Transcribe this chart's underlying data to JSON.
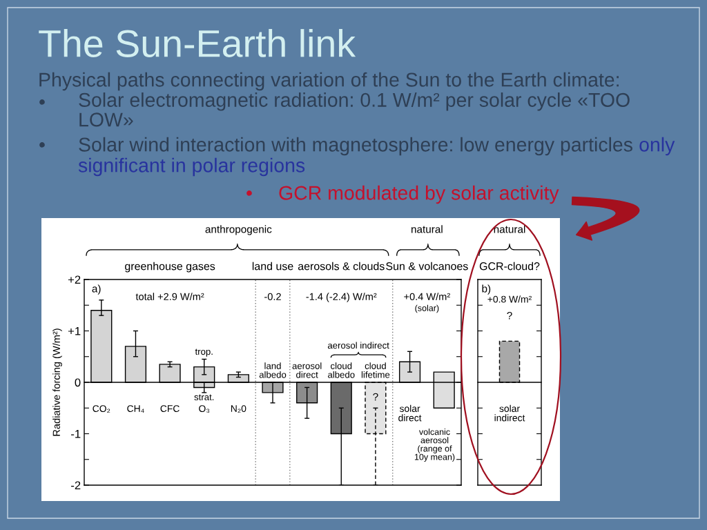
{
  "chart_data": [
    {
      "type": "bar",
      "title": "The Sun-Earth link",
      "ylabel": "Radiative forcing (W/m²)",
      "categories": [
        "CO₂",
        "CH₄",
        "CFC",
        "O₃",
        "N₂0",
        "land\nalbedo",
        "aerosol\ndirect",
        "cloud\nalbedo",
        "cloud\nlifetime",
        "solar\ndirect",
        "volcanic\naerosol\n(range of\n10y mean)"
      ],
      "series": [
        {
          "colors": [
            "#d4d4d4",
            "#d4d4d4",
            "#d4d4d4",
            "#d4d4d4",
            "#d4d4d4",
            "#a6a6a6",
            "#8c8c8c",
            "#6a6a6a",
            "#e4e4e4",
            "#d9d9d9",
            "#dedede"
          ],
          "values": [
            1.4,
            0.7,
            0.35,
            0.3,
            0.15,
            -0.2,
            -0.4,
            -1.0,
            null,
            0.4,
            0.7
          ],
          "base": [
            null,
            null,
            null,
            null,
            null,
            null,
            null,
            null,
            null,
            null,
            -0.5
          ],
          "errors": [
            [
              1.3,
              1.6
            ],
            [
              0.5,
              1.0
            ],
            [
              0.3,
              0.4
            ],
            [
              0.15,
              0.45
            ],
            [
              0.1,
              0.2
            ],
            [
              -0.4,
              0
            ],
            [
              -0.7,
              -0.1
            ],
            [
              -2,
              -0.5
            ],
            null,
            [
              0.2,
              0.6
            ],
            null
          ]
        },
        {
          "color": "#d4d4d4",
          "values": [
            null,
            null,
            null,
            -0.1,
            null,
            null,
            null,
            null,
            null,
            null,
            null
          ],
          "errors": [
            null,
            null,
            null,
            [
              -0.2,
              0
            ],
            null,
            null,
            null,
            null,
            null,
            null,
            null
          ]
        },
        {
          "color": "#e4e4e4",
          "line_style": "dashed",
          "values": [
            null,
            null,
            null,
            null,
            null,
            null,
            null,
            null,
            -1.0,
            null,
            null
          ],
          "errors": [
            null,
            null,
            null,
            null,
            null,
            null,
            null,
            null,
            [
              -2,
              -0.5
            ],
            null,
            null
          ]
        }
      ],
      "ylim": [
        -2,
        2
      ],
      "yticks": [
        {
          "value": 2,
          "label": "+2"
        },
        {
          "value": 1.5,
          "label": null
        },
        {
          "value": 1,
          "label": "+1"
        },
        {
          "value": 0.5,
          "label": null
        },
        0,
        {
          "value": -0.5,
          "label": null
        },
        -1,
        {
          "value": -1.5,
          "label": null
        },
        -2
      ],
      "annotations": [
        "Physical paths connecting variation of the Sun to the Earth climate:",
        "•",
        "Solar electromagnetic radiation: 0.1 W/m² per solar cycle «TOO\nLOW»",
        "•",
        "Solar wind interaction with magnetosphere: low energy particles",
        "only",
        "significant in polar regions",
        "•",
        "GCR modulated by solar activity",
        "anthropogenic",
        "natural",
        "greenhouse gases",
        "land use",
        "aerosols & clouds",
        "Sun & volcanoes",
        "a)",
        "total +2.9 W/m²",
        "-0.2",
        "-1.4 (-2.4) W/m²",
        "+0.4 W/m²",
        "(solar)",
        "aerosol indirect",
        "trop.",
        "strat.",
        "?"
      ]
    },
    {
      "type": "bar",
      "categories": [
        "solar\nindirect"
      ],
      "series": [
        {
          "color": "#a8a8a8",
          "line_style": "dashed",
          "values": [
            0.8
          ]
        }
      ],
      "ylim": [
        -2,
        2
      ],
      "yticks": [
        {
          "value": 1.5,
          "label": null
        },
        {
          "value": 1,
          "label": null
        },
        {
          "value": 0.5,
          "label": null
        },
        {
          "value": -0.5,
          "label": null
        },
        {
          "value": -1,
          "label": null
        },
        {
          "value": -1.5,
          "label": null
        }
      ],
      "tick_labels": "x",
      "annotations": [
        "natural",
        "GCR-cloud?",
        "b)",
        "+0.8 W/m²",
        "?"
      ]
    }
  ]
}
